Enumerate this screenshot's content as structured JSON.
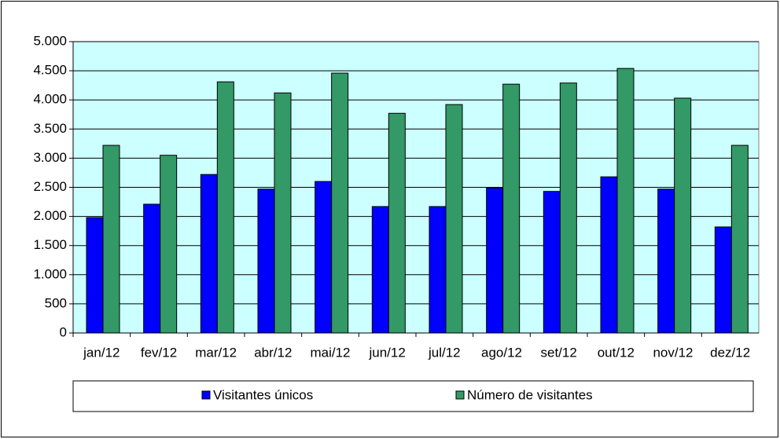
{
  "chart_data": {
    "type": "bar",
    "categories": [
      "jan/12",
      "fev/12",
      "mar/12",
      "abr/12",
      "mai/12",
      "jun/12",
      "jul/12",
      "ago/12",
      "set/12",
      "out/12",
      "nov/12",
      "dez/12"
    ],
    "series": [
      {
        "name": "Visitantes únicos",
        "color": "#0000ff",
        "values": [
          1980,
          2210,
          2720,
          2470,
          2600,
          2170,
          2170,
          2490,
          2430,
          2680,
          2470,
          1820
        ]
      },
      {
        "name": "Número de visitantes",
        "color": "#339966",
        "values": [
          3220,
          3050,
          4310,
          4120,
          4460,
          3770,
          3920,
          4270,
          4290,
          4540,
          4030,
          3220
        ]
      }
    ],
    "ylim": [
      0,
      5000
    ],
    "yticks": [
      0,
      500,
      {
        "value": 1000,
        "label": "1.000"
      },
      {
        "value": 1500,
        "label": "1.500"
      },
      {
        "value": 2000,
        "label": "2.000"
      },
      {
        "value": 2500,
        "label": "2.500"
      },
      {
        "value": 3000,
        "label": "3.000"
      },
      {
        "value": 3500,
        "label": "3.500"
      },
      {
        "value": 4000,
        "label": "4.000"
      },
      {
        "value": 4500,
        "label": "4.500"
      },
      {
        "value": 5000,
        "label": "5.000"
      }
    ],
    "grid": true,
    "legend": "bottom",
    "plot_background": "#ccffff"
  }
}
